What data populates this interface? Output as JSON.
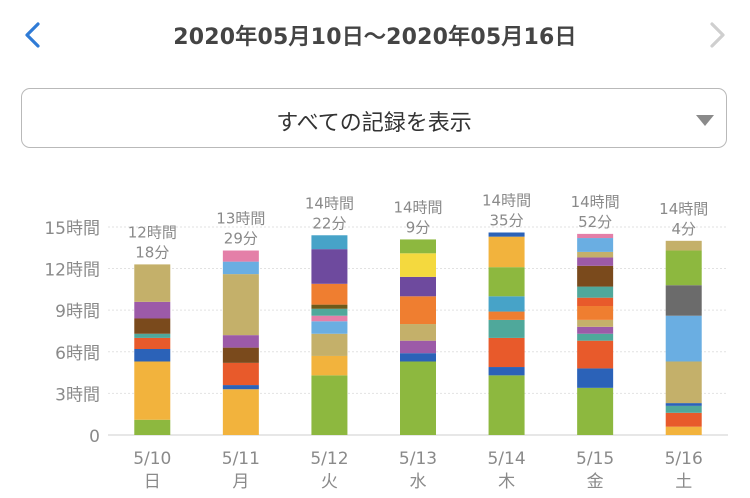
{
  "header": {
    "title": "2020年05月10日〜2020年05月16日",
    "prev_icon": "chevron-left-icon",
    "next_icon": "chevron-right-icon"
  },
  "filter": {
    "selected": "すべての記録を表示",
    "icon": "triangle-down-icon"
  },
  "colors": {
    "accent": "#2f7bd6",
    "disabled": "#cfcfcf",
    "axis_text": "#8a8a8a"
  },
  "chart_data": {
    "type": "bar",
    "stacked": true,
    "y_unit_label": "時間",
    "yticks": [
      {
        "value": 0,
        "label": "0"
      },
      {
        "value": 3,
        "label": "3時間"
      },
      {
        "value": 6,
        "label": "6時間"
      },
      {
        "value": 9,
        "label": "9時間"
      },
      {
        "value": 12,
        "label": "12時間"
      },
      {
        "value": 15,
        "label": "15時間"
      }
    ],
    "ylim": [
      0,
      15
    ],
    "grid": true,
    "days": [
      {
        "date": "5/10",
        "weekday": "日",
        "total_hours": "12時間",
        "total_minutes": "18分",
        "segments": [
          {
            "color": "#8db83f",
            "hours": 1.1
          },
          {
            "color": "#f2b33d",
            "hours": 4.2
          },
          {
            "color": "#2b62b8",
            "hours": 0.9
          },
          {
            "color": "#e85a2b",
            "hours": 0.8
          },
          {
            "color": "#4fa89b",
            "hours": 0.3
          },
          {
            "color": "#7a4a1c",
            "hours": 1.1
          },
          {
            "color": "#9c5aa8",
            "hours": 1.2
          },
          {
            "color": "#c4b06a",
            "hours": 2.7
          }
        ]
      },
      {
        "date": "5/11",
        "weekday": "月",
        "total_hours": "13時間",
        "total_minutes": "29分",
        "segments": [
          {
            "color": "#f2b33d",
            "hours": 3.3
          },
          {
            "color": "#2b62b8",
            "hours": 0.3
          },
          {
            "color": "#e85a2b",
            "hours": 1.6
          },
          {
            "color": "#7a4a1c",
            "hours": 1.1
          },
          {
            "color": "#9c5aa8",
            "hours": 0.9
          },
          {
            "color": "#c4b06a",
            "hours": 4.4
          },
          {
            "color": "#6aaee2",
            "hours": 0.9
          },
          {
            "color": "#e47fa8",
            "hours": 0.8
          }
        ]
      },
      {
        "date": "5/12",
        "weekday": "火",
        "total_hours": "14時間",
        "total_minutes": "22分",
        "segments": [
          {
            "color": "#8db83f",
            "hours": 4.3
          },
          {
            "color": "#f2b33d",
            "hours": 1.4
          },
          {
            "color": "#c4b06a",
            "hours": 1.6
          },
          {
            "color": "#6aaee2",
            "hours": 0.9
          },
          {
            "color": "#e47fa8",
            "hours": 0.4
          },
          {
            "color": "#4fa89b",
            "hours": 0.5
          },
          {
            "color": "#6d5a1a",
            "hours": 0.3
          },
          {
            "color": "#ef7e30",
            "hours": 1.5
          },
          {
            "color": "#6e4a9e",
            "hours": 2.5
          },
          {
            "color": "#47a3c8",
            "hours": 1.0
          }
        ]
      },
      {
        "date": "5/13",
        "weekday": "水",
        "total_hours": "14時間",
        "total_minutes": "9分",
        "segments": [
          {
            "color": "#8db83f",
            "hours": 5.3
          },
          {
            "color": "#2b62b8",
            "hours": 0.6
          },
          {
            "color": "#9c5aa8",
            "hours": 0.9
          },
          {
            "color": "#c4b06a",
            "hours": 1.2
          },
          {
            "color": "#ef7e30",
            "hours": 2.0
          },
          {
            "color": "#6e4a9e",
            "hours": 1.4
          },
          {
            "color": "#f4d93e",
            "hours": 1.7
          },
          {
            "color": "#8db83f",
            "hours": 1.0
          }
        ]
      },
      {
        "date": "5/14",
        "weekday": "木",
        "total_hours": "14時間",
        "total_minutes": "35分",
        "segments": [
          {
            "color": "#8db83f",
            "hours": 4.3
          },
          {
            "color": "#2b62b8",
            "hours": 0.6
          },
          {
            "color": "#e85a2b",
            "hours": 2.1
          },
          {
            "color": "#4fa89b",
            "hours": 1.3
          },
          {
            "color": "#ef7e30",
            "hours": 0.6
          },
          {
            "color": "#47a3c8",
            "hours": 1.1
          },
          {
            "color": "#8db83f",
            "hours": 2.1
          },
          {
            "color": "#f2b33d",
            "hours": 2.2
          },
          {
            "color": "#2b62b8",
            "hours": 0.3
          }
        ]
      },
      {
        "date": "5/15",
        "weekday": "金",
        "total_hours": "14時間",
        "total_minutes": "52分",
        "segments": [
          {
            "color": "#8db83f",
            "hours": 3.4
          },
          {
            "color": "#2b62b8",
            "hours": 1.4
          },
          {
            "color": "#e85a2b",
            "hours": 2.0
          },
          {
            "color": "#4fa89b",
            "hours": 0.5
          },
          {
            "color": "#9c5aa8",
            "hours": 0.5
          },
          {
            "color": "#c4b06a",
            "hours": 0.5
          },
          {
            "color": "#ef7e30",
            "hours": 1.0
          },
          {
            "color": "#e85a2b",
            "hours": 0.6
          },
          {
            "color": "#4fa89b",
            "hours": 0.8
          },
          {
            "color": "#7a4a1c",
            "hours": 1.5
          },
          {
            "color": "#9c5aa8",
            "hours": 0.6
          },
          {
            "color": "#c4b06a",
            "hours": 0.4
          },
          {
            "color": "#6aaee2",
            "hours": 1.0
          },
          {
            "color": "#e47fa8",
            "hours": 0.3
          }
        ]
      },
      {
        "date": "5/16",
        "weekday": "土",
        "total_hours": "14時間",
        "total_minutes": "4分",
        "segments": [
          {
            "color": "#f2b33d",
            "hours": 0.6
          },
          {
            "color": "#e85a2b",
            "hours": 1.0
          },
          {
            "color": "#4fa89b",
            "hours": 0.5
          },
          {
            "color": "#2b62b8",
            "hours": 0.2
          },
          {
            "color": "#c4b06a",
            "hours": 3.0
          },
          {
            "color": "#6aaee2",
            "hours": 3.3
          },
          {
            "color": "#6b6b6b",
            "hours": 2.2
          },
          {
            "color": "#8db83f",
            "hours": 2.5
          },
          {
            "color": "#c4b06a",
            "hours": 0.7
          }
        ]
      }
    ]
  }
}
